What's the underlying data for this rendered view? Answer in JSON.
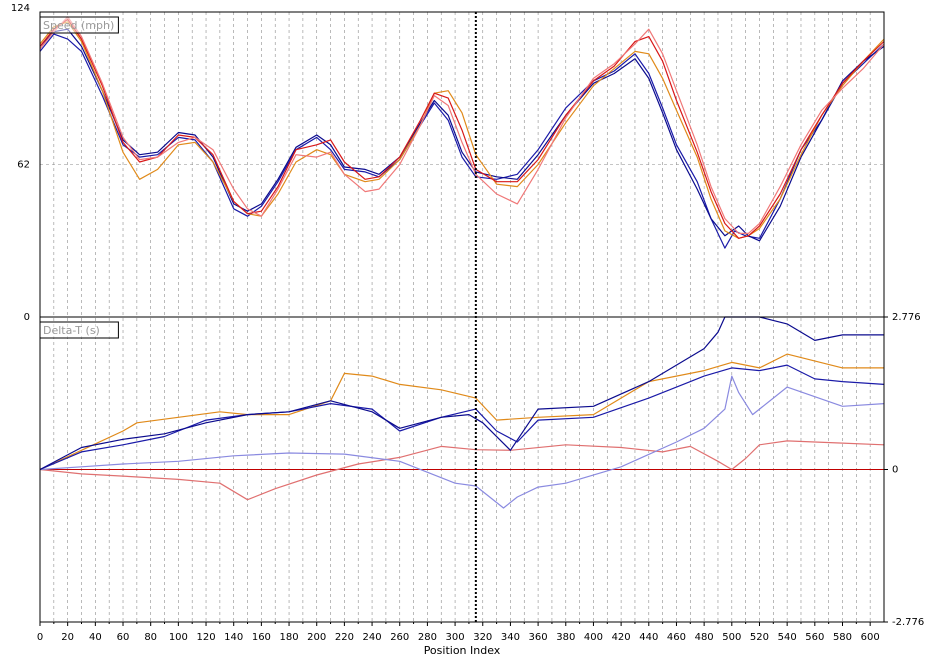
{
  "chart_data": {
    "type": "line",
    "xlabel": "Position Index",
    "x_ticks": [
      0,
      20,
      40,
      60,
      80,
      100,
      120,
      140,
      160,
      180,
      200,
      220,
      240,
      260,
      280,
      300,
      320,
      340,
      360,
      380,
      400,
      420,
      440,
      460,
      480,
      500,
      520,
      540,
      560,
      580,
      600
    ],
    "xlim": [
      0,
      610
    ],
    "cursor_x": 315,
    "grid": true,
    "colors": {
      "axis": "#000000",
      "grid": "#8c8c8c",
      "cursor": "#000000",
      "zero_line": "#c00000",
      "panel_title_text": "#9a9a9a"
    },
    "panels": [
      {
        "id": "speed",
        "title": "Speed (mph)",
        "ylim": [
          0,
          124
        ],
        "left_ticks": [
          "124",
          "62",
          "0"
        ],
        "left_tick_values": [
          124,
          62,
          0
        ],
        "right_ticks": [],
        "series": [
          {
            "color": "#1a1aa8",
            "x": [
              0,
              10,
              20,
              30,
              45,
              60,
              72,
              85,
              100,
              112,
              125,
              140,
              150,
              160,
              172,
              185,
              200,
              210,
              220,
              235,
              245,
              260,
              275,
              285,
              295,
              305,
              315,
              330,
              345,
              360,
              380,
              400,
              415,
              430,
              440,
              450,
              460,
              475,
              485,
              495,
              502,
              510,
              520,
              535,
              550,
              565,
              580,
              595,
              610
            ],
            "y": [
              108,
              115,
              113,
              108,
              90,
              70,
              65,
              66,
              73,
              72,
              63,
              44,
              41,
              45,
              55,
              68,
              73,
              68,
              60,
              59,
              57,
              64,
              78,
              87,
              80,
              65,
              57,
              56,
              58,
              68,
              85,
              96,
              100,
              107,
              99,
              85,
              70,
              55,
              40,
              28,
              35,
              33,
              32,
              48,
              68,
              80,
              95,
              103,
              111
            ]
          },
          {
            "color": "#0b0b8e",
            "x": [
              0,
              10,
              20,
              30,
              45,
              60,
              72,
              85,
              100,
              112,
              125,
              140,
              150,
              160,
              172,
              185,
              200,
              210,
              220,
              235,
              245,
              260,
              275,
              285,
              295,
              305,
              315,
              330,
              345,
              360,
              380,
              400,
              415,
              430,
              440,
              450,
              460,
              475,
              485,
              495,
              505,
              512,
              520,
              535,
              550,
              565,
              580,
              595,
              610
            ],
            "y": [
              110,
              116,
              117,
              110,
              92,
              72,
              66,
              67,
              75,
              74,
              65,
              46,
              43,
              46,
              56,
              69,
              74,
              70,
              61,
              60,
              58,
              65,
              79,
              88,
              82,
              67,
              59,
              57,
              56,
              66,
              82,
              95,
              99,
              105,
              97,
              83,
              68,
              52,
              40,
              33,
              37,
              33,
              31,
              45,
              65,
              80,
              96,
              104,
              110
            ]
          },
          {
            "color": "#e08a1a",
            "x": [
              0,
              10,
              20,
              30,
              45,
              60,
              72,
              85,
              100,
              112,
              125,
              140,
              150,
              160,
              172,
              185,
              200,
              210,
              220,
              235,
              245,
              260,
              275,
              285,
              295,
              305,
              315,
              330,
              345,
              360,
              380,
              400,
              415,
              430,
              440,
              450,
              460,
              475,
              485,
              495,
              505,
              512,
              520,
              535,
              550,
              565,
              580,
              595,
              610
            ],
            "y": [
              111,
              118,
              120,
              112,
              92,
              67,
              56,
              60,
              70,
              71,
              63,
              47,
              42,
              41,
              50,
              63,
              68,
              66,
              58,
              55,
              56,
              64,
              78,
              91,
              92,
              83,
              66,
              54,
              53,
              62,
              79,
              94,
              101,
              108,
              107,
              97,
              84,
              65,
              48,
              35,
              32,
              33,
              36,
              48,
              66,
              82,
              94,
              104,
              113
            ]
          },
          {
            "color": "#d81818",
            "x": [
              0,
              10,
              20,
              30,
              45,
              60,
              72,
              85,
              100,
              112,
              125,
              140,
              150,
              160,
              172,
              185,
              200,
              210,
              220,
              235,
              245,
              260,
              275,
              285,
              295,
              305,
              315,
              330,
              345,
              360,
              380,
              400,
              415,
              430,
              440,
              450,
              460,
              475,
              485,
              495,
              505,
              512,
              520,
              535,
              550,
              565,
              580,
              595,
              610
            ],
            "y": [
              110,
              117,
              121,
              113,
              94,
              71,
              63,
              65,
              74,
              73,
              66,
              47,
              42,
              43,
              53,
              68,
              70,
              72,
              63,
              56,
              57,
              65,
              80,
              91,
              89,
              76,
              60,
              55,
              55,
              64,
              82,
              96,
              102,
              112,
              114,
              104,
              88,
              67,
              51,
              38,
              32,
              33,
              37,
              50,
              68,
              82,
              95,
              104,
              112
            ]
          },
          {
            "color": "#f07878",
            "x": [
              0,
              10,
              20,
              30,
              45,
              60,
              72,
              85,
              100,
              112,
              125,
              140,
              150,
              160,
              172,
              185,
              200,
              210,
              220,
              235,
              245,
              260,
              275,
              285,
              295,
              305,
              315,
              330,
              345,
              360,
              380,
              400,
              415,
              430,
              440,
              450,
              460,
              475,
              485,
              495,
              505,
              512,
              520,
              535,
              550,
              565,
              580,
              595,
              610
            ],
            "y": [
              109,
              116,
              122,
              114,
              95,
              73,
              64,
              65,
              71,
              73,
              68,
              52,
              44,
              41,
              52,
              66,
              65,
              67,
              58,
              51,
              52,
              62,
              78,
              90,
              86,
              71,
              58,
              50,
              46,
              60,
              81,
              97,
              103,
              111,
              117,
              107,
              92,
              70,
              53,
              40,
              34,
              34,
              38,
              53,
              70,
              84,
              93,
              101,
              111
            ]
          }
        ]
      },
      {
        "id": "delta",
        "title": "Delta-T (s)",
        "ylim": [
          -2.776,
          2.776
        ],
        "left_ticks": [],
        "right_ticks": [
          "2.776",
          "0",
          "-2.776"
        ],
        "right_tick_values": [
          2.776,
          0,
          -2.776
        ],
        "series": [
          {
            "color": "#c00000",
            "x": [
              0,
              610
            ],
            "y": [
              0,
              0
            ]
          },
          {
            "color": "#e07070",
            "x": [
              0,
              30,
              60,
              100,
              130,
              150,
              170,
              200,
              230,
              260,
              290,
              315,
              340,
              380,
              420,
              450,
              470,
              490,
              500,
              510,
              520,
              540,
              580,
              610
            ],
            "y": [
              0,
              -0.08,
              -0.12,
              -0.18,
              -0.25,
              -0.55,
              -0.35,
              -0.1,
              0.1,
              0.22,
              0.42,
              0.36,
              0.35,
              0.45,
              0.4,
              0.32,
              0.42,
              0.15,
              0.0,
              0.2,
              0.45,
              0.52,
              0.48,
              0.45
            ]
          },
          {
            "color": "#8a8ae0",
            "x": [
              0,
              30,
              60,
              100,
              140,
              180,
              220,
              260,
              300,
              315,
              335,
              345,
              360,
              380,
              420,
              460,
              480,
              495,
              500,
              505,
              515,
              540,
              580,
              610
            ],
            "y": [
              0,
              0.05,
              0.1,
              0.15,
              0.25,
              0.3,
              0.28,
              0.15,
              -0.25,
              -0.3,
              -0.7,
              -0.5,
              -0.32,
              -0.25,
              0.05,
              0.5,
              0.75,
              1.1,
              1.7,
              1.4,
              1.0,
              1.5,
              1.15,
              1.2
            ]
          },
          {
            "color": "#e08a1a",
            "x": [
              0,
              30,
              60,
              70,
              100,
              130,
              150,
              180,
              210,
              220,
              240,
              260,
              290,
              315,
              330,
              360,
              400,
              440,
              480,
              500,
              520,
              540,
              580,
              610
            ],
            "y": [
              0,
              0.35,
              0.7,
              0.85,
              0.95,
              1.05,
              1.0,
              1.0,
              1.25,
              1.75,
              1.7,
              1.55,
              1.45,
              1.3,
              0.9,
              0.95,
              1.0,
              1.6,
              1.8,
              1.95,
              1.85,
              2.1,
              1.85,
              1.85
            ]
          },
          {
            "color": "#1a1aa8",
            "x": [
              0,
              30,
              60,
              90,
              120,
              150,
              180,
              210,
              240,
              260,
              290,
              315,
              330,
              345,
              360,
              400,
              440,
              480,
              500,
              520,
              540,
              560,
              580,
              610
            ],
            "y": [
              0,
              0.32,
              0.45,
              0.6,
              0.9,
              1.0,
              1.05,
              1.2,
              1.1,
              0.7,
              0.95,
              1.1,
              0.7,
              0.5,
              0.9,
              0.95,
              1.3,
              1.7,
              1.85,
              1.8,
              1.9,
              1.65,
              1.6,
              1.55
            ]
          },
          {
            "color": "#0b0b8e",
            "x": [
              0,
              30,
              60,
              90,
              120,
              150,
              180,
              210,
              240,
              260,
              290,
              310,
              320,
              340,
              360,
              400,
              440,
              480,
              490,
              495,
              500,
              505,
              510,
              520,
              540,
              560,
              580,
              610
            ],
            "y": [
              0,
              0.4,
              0.55,
              0.65,
              0.85,
              1.0,
              1.05,
              1.25,
              1.05,
              0.75,
              0.95,
              1.0,
              0.85,
              0.35,
              1.1,
              1.15,
              1.6,
              2.2,
              2.5,
              3.1,
              4.0,
              4.2,
              3.8,
              2.9,
              2.65,
              2.35,
              2.45,
              2.45
            ]
          }
        ]
      }
    ]
  }
}
